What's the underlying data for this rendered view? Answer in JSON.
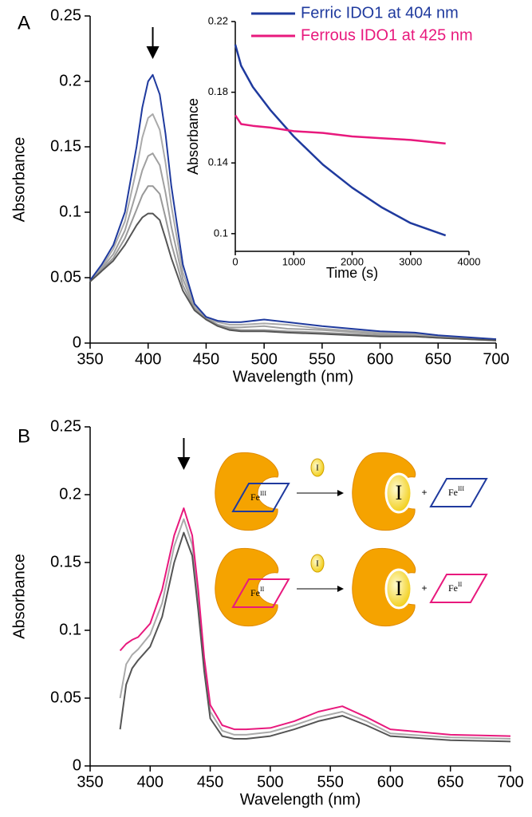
{
  "chart_data": [
    {
      "type": "line",
      "panel": "A",
      "xlabel": "Wavelength (nm)",
      "ylabel": "Absorbance",
      "x": [
        350,
        360,
        370,
        380,
        390,
        395,
        400,
        404,
        410,
        415,
        420,
        430,
        440,
        450,
        460,
        470,
        480,
        500,
        520,
        550,
        600,
        630,
        650,
        700
      ],
      "series": [
        {
          "color": "#aaaaaa",
          "values": [
            0.048,
            0.058,
            0.072,
            0.093,
            0.133,
            0.157,
            0.172,
            0.175,
            0.163,
            0.138,
            0.105,
            0.054,
            0.029,
            0.019,
            0.016,
            0.014,
            0.014,
            0.015,
            0.014,
            0.011,
            0.008,
            0.007,
            0.005,
            0.003
          ]
        },
        {
          "color": "#a0a0a0",
          "values": [
            0.047,
            0.057,
            0.068,
            0.086,
            0.116,
            0.132,
            0.143,
            0.145,
            0.136,
            0.115,
            0.089,
            0.049,
            0.027,
            0.019,
            0.014,
            0.012,
            0.012,
            0.013,
            0.011,
            0.01,
            0.007,
            0.006,
            0.005,
            0.002
          ]
        },
        {
          "color": "#999999",
          "values": [
            0.047,
            0.056,
            0.065,
            0.08,
            0.102,
            0.113,
            0.12,
            0.12,
            0.114,
            0.096,
            0.076,
            0.044,
            0.026,
            0.018,
            0.014,
            0.011,
            0.01,
            0.01,
            0.009,
            0.008,
            0.006,
            0.005,
            0.004,
            0.002
          ]
        },
        {
          "color": "#1f3a9e",
          "values": [
            0.048,
            0.06,
            0.075,
            0.1,
            0.15,
            0.18,
            0.2,
            0.205,
            0.19,
            0.16,
            0.12,
            0.06,
            0.03,
            0.02,
            0.017,
            0.016,
            0.016,
            0.018,
            0.016,
            0.013,
            0.009,
            0.008,
            0.006,
            0.003
          ]
        },
        {
          "color": "#555555",
          "values": [
            0.047,
            0.055,
            0.063,
            0.075,
            0.09,
            0.096,
            0.099,
            0.099,
            0.094,
            0.08,
            0.065,
            0.04,
            0.025,
            0.018,
            0.013,
            0.01,
            0.009,
            0.009,
            0.008,
            0.007,
            0.005,
            0.005,
            0.004,
            0.002
          ]
        }
      ],
      "xlim": [
        350,
        700
      ],
      "xticks": [
        350,
        400,
        450,
        500,
        550,
        600,
        650,
        700
      ],
      "ylim": [
        0,
        0.25
      ],
      "yticks": [
        0,
        0.05,
        0.1,
        0.15,
        0.2,
        0.25
      ]
    },
    {
      "type": "line",
      "xlabel": "Time (s)",
      "ylabel": "Absorbance",
      "x": [
        0,
        100,
        300,
        600,
        1000,
        1500,
        2000,
        2500,
        3000,
        3600
      ],
      "series": [
        {
          "name": "Ferric IDO1 at 404 nm",
          "color": "#1f3a9e",
          "values": [
            0.207,
            0.195,
            0.183,
            0.17,
            0.155,
            0.139,
            0.126,
            0.115,
            0.106,
            0.099
          ]
        },
        {
          "name": "Ferrous IDO1 at 425 nm",
          "color": "#e8197d",
          "values": [
            0.167,
            0.162,
            0.161,
            0.16,
            0.158,
            0.157,
            0.155,
            0.154,
            0.153,
            0.151
          ]
        }
      ],
      "xlim": [
        0,
        4000
      ],
      "xticks": [
        0,
        1000,
        2000,
        3000,
        4000
      ],
      "ylim": [
        0.09,
        0.22
      ],
      "yticks": [
        0.1,
        0.14,
        0.18,
        0.22
      ],
      "legend": "top-right"
    },
    {
      "type": "line",
      "panel": "B",
      "xlabel": "Wavelength (nm)",
      "ylabel": "Absorbance",
      "x": [
        375,
        380,
        385,
        390,
        400,
        410,
        420,
        428,
        435,
        440,
        445,
        450,
        460,
        470,
        480,
        500,
        520,
        540,
        560,
        580,
        600,
        650,
        700
      ],
      "series": [
        {
          "color": "#aaaaaa",
          "values": [
            0.05,
            0.075,
            0.082,
            0.086,
            0.097,
            0.12,
            0.162,
            0.182,
            0.163,
            0.122,
            0.075,
            0.04,
            0.026,
            0.023,
            0.023,
            0.025,
            0.03,
            0.036,
            0.04,
            0.033,
            0.024,
            0.021,
            0.02
          ]
        },
        {
          "color": "#e8197d",
          "values": [
            0.085,
            0.09,
            0.093,
            0.095,
            0.105,
            0.13,
            0.17,
            0.19,
            0.17,
            0.13,
            0.08,
            0.045,
            0.03,
            0.027,
            0.027,
            0.028,
            0.033,
            0.04,
            0.044,
            0.036,
            0.027,
            0.023,
            0.022
          ]
        },
        {
          "color": "#555555",
          "values": [
            0.027,
            0.06,
            0.072,
            0.078,
            0.088,
            0.11,
            0.15,
            0.172,
            0.155,
            0.115,
            0.07,
            0.035,
            0.022,
            0.02,
            0.02,
            0.022,
            0.027,
            0.033,
            0.037,
            0.03,
            0.022,
            0.019,
            0.018
          ]
        }
      ],
      "xlim": [
        350,
        700
      ],
      "xticks": [
        350,
        400,
        450,
        500,
        550,
        600,
        650,
        700
      ],
      "ylim": [
        0,
        0.25
      ],
      "yticks": [
        0,
        0.05,
        0.1,
        0.15,
        0.2,
        0.25
      ]
    }
  ],
  "diagram": {
    "rows": [
      {
        "iron": "Fe",
        "state": "III",
        "ligand": "I",
        "plus": "+"
      },
      {
        "iron": "Fe",
        "state": "II",
        "ligand": "I",
        "plus": "+"
      }
    ]
  }
}
